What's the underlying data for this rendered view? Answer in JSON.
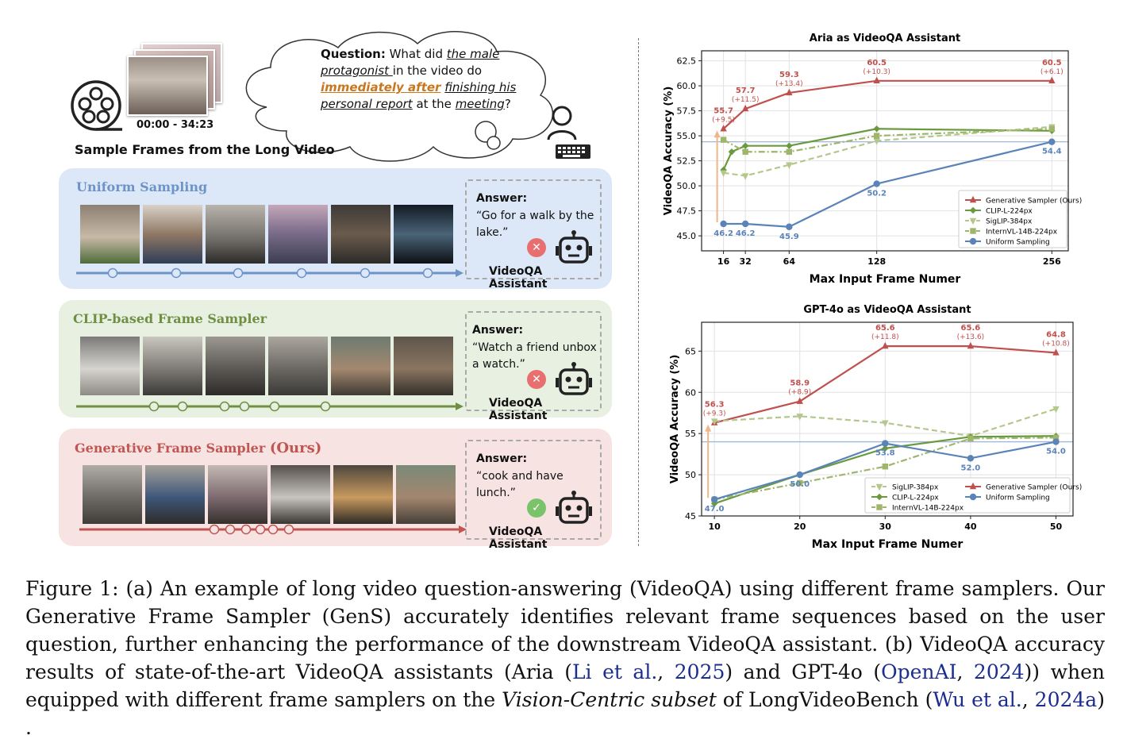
{
  "left_panel": {
    "timecode": "00:00 - 34:23",
    "sample_caption": "Sample Frames from the Long Video",
    "question": {
      "label": "Question:",
      "p1": " What did ",
      "u1": "the male protagonist ",
      "p2": "in the video do ",
      "hl": "immediately after",
      "p3": " ",
      "u2": "finishing his personal report",
      "p4": " at the ",
      "u3": "meeting",
      "p5": "?"
    },
    "assistant_label": "VideoQA Assistant",
    "answer_label": "Answer:",
    "panels": [
      {
        "title": "Uniform Sampling",
        "answer": "“Go for a walk by the lake.”",
        "correct": false,
        "color": "#6e93c6"
      },
      {
        "title": "CLIP-based Frame Sampler",
        "answer": "“Watch a friend unbox a watch.”",
        "correct": false,
        "color": "#6f8f43"
      },
      {
        "title_main": "Generative Frame Sampler ",
        "title_ours": "(Ours)",
        "answer": "“cook and have lunch.”",
        "correct": true,
        "color": "#c05552"
      }
    ],
    "marks": {
      "bad": "✕",
      "good": "✓"
    }
  },
  "colors": {
    "generative": "#c0504d",
    "clip": "#6a9a3f",
    "siglip": "#b4c78c",
    "internvl": "#9fb56b",
    "uniform": "#5a84b8"
  },
  "chart_data": [
    {
      "type": "line",
      "title": "Aria as VideoQA Assistant",
      "xlabel": "Max Input Frame Numer",
      "ylabel": "VideoQA Accuracy (%)",
      "xlim": [
        0,
        268
      ],
      "ylim": [
        43.5,
        63.5
      ],
      "xticks": [
        16,
        32,
        64,
        128,
        256
      ],
      "yticks": [
        45.0,
        47.5,
        50.0,
        52.5,
        55.0,
        57.5,
        60.0,
        62.5
      ],
      "ytick_labels": [
        "45.0",
        "47.5",
        "50.0",
        "52.5",
        "55.0",
        "57.5",
        "60.0",
        "62.5"
      ],
      "baseline": 54.4,
      "legend_position": "lower-right",
      "series": [
        {
          "name": "Generative Sampler (Ours)",
          "key": "generative",
          "marker": "triangle",
          "dash": "solid",
          "x": [
            16,
            32,
            64,
            128,
            256
          ],
          "y": [
            55.7,
            57.7,
            59.3,
            60.5,
            60.5
          ]
        },
        {
          "name": "CLIP-L-224px",
          "key": "clip",
          "marker": "diamond",
          "dash": "solid",
          "x": [
            16,
            22,
            32,
            64,
            128,
            256
          ],
          "y": [
            51.6,
            53.4,
            54.0,
            54.0,
            55.7,
            55.5
          ]
        },
        {
          "name": "SigLIP-384px",
          "key": "siglip",
          "marker": "tri-down",
          "dash": "dashed",
          "x": [
            16,
            32,
            64,
            128,
            256
          ],
          "y": [
            51.3,
            51.0,
            52.1,
            54.5,
            55.9
          ]
        },
        {
          "name": "InternVL-14B-224px",
          "key": "internvl",
          "marker": "square",
          "dash": "dashdot",
          "x": [
            16,
            32,
            64,
            128,
            256
          ],
          "y": [
            54.6,
            53.4,
            53.4,
            55.0,
            55.7
          ]
        },
        {
          "name": "Uniform Sampling",
          "key": "uniform",
          "marker": "circle",
          "dash": "solid",
          "x": [
            16,
            32,
            64,
            128,
            256
          ],
          "y": [
            46.2,
            46.2,
            45.9,
            50.2,
            54.4
          ]
        }
      ],
      "annotations_gen": [
        {
          "x": 16,
          "y": 55.7,
          "value": "55.7",
          "delta": "(+9.5)"
        },
        {
          "x": 32,
          "y": 57.7,
          "value": "57.7",
          "delta": "(+11.5)"
        },
        {
          "x": 64,
          "y": 59.3,
          "value": "59.3",
          "delta": "(+13.4)"
        },
        {
          "x": 128,
          "y": 60.5,
          "value": "60.5",
          "delta": "(+10.3)"
        },
        {
          "x": 256,
          "y": 60.5,
          "value": "60.5",
          "delta": "(+6.1)"
        }
      ],
      "annotations_uniform": [
        {
          "x": 16,
          "y": 46.2,
          "value": "46.2"
        },
        {
          "x": 32,
          "y": 46.2,
          "value": "46.2"
        },
        {
          "x": 64,
          "y": 45.9,
          "value": "45.9"
        },
        {
          "x": 128,
          "y": 50.2,
          "value": "50.2"
        },
        {
          "x": 256,
          "y": 54.4,
          "value": "54.4"
        }
      ],
      "legend": [
        "Generative Sampler (Ours)",
        "CLIP-L-224px",
        "SigLIP-384px",
        "InternVL-14B-224px",
        "Uniform Sampling"
      ]
    },
    {
      "type": "line",
      "title": "GPT-4o as VideoQA Assistant",
      "xlabel": "Max Input Frame Numer",
      "ylabel": "VideoQA Accuracy (%)",
      "xlim": [
        8.5,
        52
      ],
      "ylim": [
        45,
        68.5
      ],
      "xticks": [
        10,
        20,
        30,
        40,
        50
      ],
      "yticks": [
        45,
        50,
        55,
        60,
        65
      ],
      "ytick_labels": [
        "45",
        "50",
        "55",
        "60",
        "65"
      ],
      "baseline": 54.0,
      "legend_position": "lower-right",
      "series": [
        {
          "name": "Generative Sampler (Ours)",
          "key": "generative",
          "marker": "triangle",
          "dash": "solid",
          "x": [
            10,
            20,
            30,
            40,
            50
          ],
          "y": [
            56.3,
            58.9,
            65.6,
            65.6,
            64.8
          ]
        },
        {
          "name": "SigLIP-384px",
          "key": "siglip",
          "marker": "tri-down",
          "dash": "dashed",
          "x": [
            10,
            20,
            30,
            40,
            50
          ],
          "y": [
            56.5,
            57.1,
            56.3,
            54.7,
            58.0
          ]
        },
        {
          "name": "CLIP-L-224px",
          "key": "clip",
          "marker": "diamond",
          "dash": "solid",
          "x": [
            10,
            20,
            30,
            40,
            50
          ],
          "y": [
            46.5,
            50.0,
            53.2,
            54.6,
            54.7
          ]
        },
        {
          "name": "InternVL-14B-224px",
          "key": "internvl",
          "marker": "square",
          "dash": "dashdot",
          "x": [
            10,
            20,
            30,
            40,
            50
          ],
          "y": [
            47.0,
            49.0,
            51.0,
            54.4,
            54.5
          ]
        },
        {
          "name": "Uniform Sampling",
          "key": "uniform",
          "marker": "circle",
          "dash": "solid",
          "x": [
            10,
            20,
            30,
            40,
            50
          ],
          "y": [
            47.0,
            50.0,
            53.8,
            52.0,
            54.0
          ]
        }
      ],
      "annotations_gen": [
        {
          "x": 10,
          "y": 56.3,
          "value": "56.3",
          "delta": "(+9.3)"
        },
        {
          "x": 20,
          "y": 58.9,
          "value": "58.9",
          "delta": "(+8.9)"
        },
        {
          "x": 30,
          "y": 65.6,
          "value": "65.6",
          "delta": "(+11.8)"
        },
        {
          "x": 40,
          "y": 65.6,
          "value": "65.6",
          "delta": "(+13.6)"
        },
        {
          "x": 50,
          "y": 64.8,
          "value": "64.8",
          "delta": "(+10.8)"
        }
      ],
      "annotations_uniform": [
        {
          "x": 10,
          "y": 47.0,
          "value": "47.0"
        },
        {
          "x": 20,
          "y": 50.0,
          "value": "50.0"
        },
        {
          "x": 30,
          "y": 53.8,
          "value": "53.8"
        },
        {
          "x": 40,
          "y": 52.0,
          "value": "52.0"
        },
        {
          "x": 50,
          "y": 54.0,
          "value": "54.0"
        }
      ],
      "legend": [
        "SigLIP-384px",
        "Generative Sampler (Ours)",
        "CLIP-L-224px",
        "Uniform Sampling",
        "InternVL-14B-224px"
      ]
    }
  ],
  "caption": {
    "t1": "Figure 1:  (a) An example of long video question-answering (VideoQA) using different frame samplers.  Our Generative Frame Sampler (GenS) accurately identifies relevant frame sequences based on the user question, further enhancing the performance of the downstream VideoQA assistant. (b) VideoQA accuracy results of state-of-the-art VideoQA assistants (Aria (",
    "c1": "Li et al.",
    "t2": ", ",
    "c2": "2025",
    "t3": ") and GPT-4o (",
    "c3": "OpenAI",
    "t4": ", ",
    "c4": "2024",
    "t5": ")) when equipped with different frame samplers on the ",
    "it": "Vision-Centric subset",
    "t6": " of LongVideoBench (",
    "c5": "Wu et al.",
    "t7": ", ",
    "c6": "2024a",
    "t8": ") ."
  }
}
